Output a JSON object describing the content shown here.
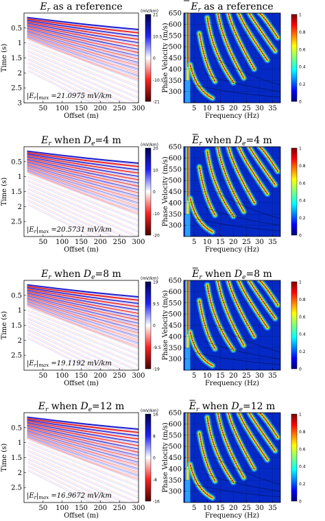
{
  "chart_data": [
    {
      "id": "tl1",
      "type": "heatmap",
      "kind": "seismo",
      "title_main": "E",
      "title_sub": "r",
      "title_rest": " as a reference",
      "bar": false,
      "xlabel": "Offset (m)",
      "ylabel": "Time (s)",
      "xlim": [
        0,
        300
      ],
      "ylim": [
        3,
        0
      ],
      "xticks": [
        50,
        100,
        150,
        200,
        250,
        300
      ],
      "yticks": [
        0.5,
        1,
        1.5,
        2,
        2.5,
        3
      ],
      "ytick_labels": [
        "0.5",
        "1",
        "1.5",
        "2",
        "2.5",
        "3"
      ],
      "colorbar": {
        "unit": "(mV/km)",
        "ticks": [
          "21",
          "10.5",
          "0",
          "-10.5",
          "-21"
        ]
      },
      "annotation": {
        "pre": "|E",
        "sub": "r",
        "mid": "|",
        "sub2": "max",
        "post": " =21.0975 mV/km"
      }
    },
    {
      "id": "tr1",
      "type": "heatmap",
      "kind": "disp",
      "title_main": "E",
      "title_sub": "r",
      "title_rest": " as a reference",
      "bar": true,
      "xlabel": "Frequency (Hz)",
      "ylabel": "Phase Velocity (m/s)",
      "xlim": [
        1,
        38
      ],
      "ylim": [
        250,
        650
      ],
      "xticks": [
        5,
        10,
        15,
        20,
        25,
        30,
        35
      ],
      "yticks": [
        300,
        350,
        400,
        450,
        500,
        550,
        600,
        650
      ],
      "colorbar": {
        "ticks": [
          "1",
          "0.8",
          "0.6",
          "0.4",
          "0.2",
          "0"
        ]
      }
    },
    {
      "id": "tl2",
      "type": "heatmap",
      "kind": "seismo",
      "title_main": "E",
      "title_sub": "r",
      "title_rest": " when ",
      "de": "D",
      "de_sub": "e",
      "de_val": "=4 m",
      "bar": false,
      "xlabel": "Offset (m)",
      "ylabel": "Time (s)",
      "xlim": [
        0,
        300
      ],
      "ylim": [
        3,
        0
      ],
      "xticks": [
        50,
        100,
        150,
        200,
        250,
        300
      ],
      "yticks": [
        0.5,
        1,
        1.5,
        2,
        2.5
      ],
      "ytick_labels": [
        "0.5",
        "1",
        "1.5",
        "2",
        "2.5"
      ],
      "colorbar": {
        "unit": "(mV/km)",
        "ticks": [
          "20",
          "10",
          "0",
          "-10",
          "-20"
        ]
      },
      "annotation": {
        "pre": "|E",
        "sub": "r",
        "mid": "|",
        "sub2": "max",
        "post": " =20.5731 mV/km"
      }
    },
    {
      "id": "tr2",
      "type": "heatmap",
      "kind": "disp",
      "title_main": "E",
      "title_sub": "r",
      "title_rest": " when ",
      "de": "D",
      "de_sub": "e",
      "de_val": "=4 m",
      "bar": true,
      "xlabel": "Frequency (Hz)",
      "ylabel": "Phase Velocity (m/s)",
      "xlim": [
        1,
        38
      ],
      "ylim": [
        250,
        650
      ],
      "xticks": [
        5,
        10,
        15,
        20,
        25,
        30,
        35
      ],
      "yticks": [
        300,
        350,
        400,
        450,
        500,
        550,
        600,
        650
      ],
      "colorbar": {
        "ticks": [
          "1",
          "0.8",
          "0.6",
          "0.4",
          "0.2",
          "0"
        ]
      }
    },
    {
      "id": "tl3",
      "type": "heatmap",
      "kind": "seismo",
      "title_main": "E",
      "title_sub": "r",
      "title_rest": " when ",
      "de": "D",
      "de_sub": "e",
      "de_val": "=8 m",
      "bar": false,
      "xlabel": "Offset (m)",
      "ylabel": "Time (s)",
      "xlim": [
        0,
        300
      ],
      "ylim": [
        3,
        0
      ],
      "xticks": [
        50,
        100,
        150,
        200,
        250,
        300
      ],
      "yticks": [
        0.5,
        1,
        1.5,
        2,
        2.5
      ],
      "ytick_labels": [
        "0.5",
        "1",
        "1.5",
        "2",
        "2.5"
      ],
      "colorbar": {
        "unit": "(mV/km)",
        "ticks": [
          "19",
          "9.5",
          "0",
          "-9.5",
          "-19"
        ]
      },
      "annotation": {
        "pre": "|E",
        "sub": "r",
        "mid": "|",
        "sub2": "max",
        "post": " =19.1192 mV/km"
      }
    },
    {
      "id": "tr3",
      "type": "heatmap",
      "kind": "disp",
      "title_main": "E",
      "title_sub": "r",
      "title_rest": " when ",
      "de": "D",
      "de_sub": "e",
      "de_val": "=8 m",
      "bar": true,
      "xlabel": "Frequency (Hz)",
      "ylabel": "Phase Velocity (m/s)",
      "xlim": [
        1,
        38
      ],
      "ylim": [
        250,
        650
      ],
      "xticks": [
        5,
        10,
        15,
        20,
        25,
        30,
        35
      ],
      "yticks": [
        300,
        350,
        400,
        450,
        500,
        550,
        600,
        650
      ],
      "colorbar": {
        "ticks": [
          "1",
          "0.8",
          "0.6",
          "0.4",
          "0.2",
          "0"
        ]
      }
    },
    {
      "id": "tl4",
      "type": "heatmap",
      "kind": "seismo",
      "title_main": "E",
      "title_sub": "r",
      "title_rest": " when ",
      "de": "D",
      "de_sub": "e",
      "de_val": "=12 m",
      "bar": false,
      "xlabel": "Offset (m)",
      "ylabel": "Time (s)",
      "xlim": [
        0,
        300
      ],
      "ylim": [
        3,
        0
      ],
      "xticks": [
        50,
        100,
        150,
        200,
        250,
        300
      ],
      "yticks": [
        0.5,
        1,
        1.5,
        2,
        2.5
      ],
      "ytick_labels": [
        "0.5",
        "1",
        "1.5",
        "2",
        "2.5"
      ],
      "colorbar": {
        "unit": "(mV/km)",
        "ticks": [
          "16",
          "8",
          "0",
          "-8",
          "-16"
        ]
      },
      "annotation": {
        "pre": "|E",
        "sub": "r",
        "mid": "|",
        "sub2": "max",
        "post": " =16.9672 mV/km"
      }
    },
    {
      "id": "tr4",
      "type": "heatmap",
      "kind": "disp",
      "title_main": "E",
      "title_sub": "r",
      "title_rest": " when ",
      "de": "D",
      "de_sub": "e",
      "de_val": "=12 m",
      "bar": true,
      "xlabel": "Frequency (Hz)",
      "ylabel": "Phase Velocity (m/s)",
      "xlim": [
        1,
        38
      ],
      "ylim": [
        250,
        650
      ],
      "xticks": [
        5,
        10,
        15,
        20,
        25,
        30,
        35
      ],
      "yticks": [
        300,
        350,
        400,
        450,
        500,
        550,
        600,
        650
      ],
      "colorbar": {
        "ticks": [
          "1",
          "0.8",
          "0.6",
          "0.4",
          "0.2",
          "0"
        ]
      }
    }
  ],
  "colors": {
    "seismic_pos": "#1c1cc8",
    "seismic_neg": "#e01818",
    "jet_low": "#00007f",
    "jet_high": "#7f0000"
  }
}
